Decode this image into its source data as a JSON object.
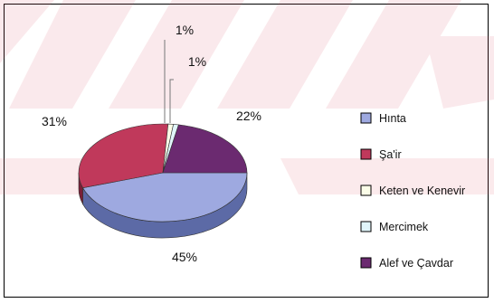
{
  "chart_data": {
    "type": "pie",
    "title": "",
    "slices": [
      {
        "label": "Hınta",
        "value": 45,
        "value_label": "45%",
        "color": "#9ea9e0",
        "side_color": "#5c6aa6"
      },
      {
        "label": "Şa'ir",
        "value": 31,
        "value_label": "31%",
        "color": "#c0395b",
        "side_color": "#7a1f37"
      },
      {
        "label": "Keten ve Kenevir",
        "value": 1,
        "value_label": "1%",
        "color": "#fbfde8",
        "side_color": "#b7b9a0"
      },
      {
        "label": "Mercimek",
        "value": 1,
        "value_label": "1%",
        "color": "#e0f5fa",
        "side_color": "#9ab4bb"
      },
      {
        "label": "Alef ve Çavdar",
        "value": 22,
        "value_label": "22%",
        "color": "#6b2a70",
        "side_color": "#3d1842"
      }
    ],
    "legend_position": "right",
    "style": "3d"
  }
}
